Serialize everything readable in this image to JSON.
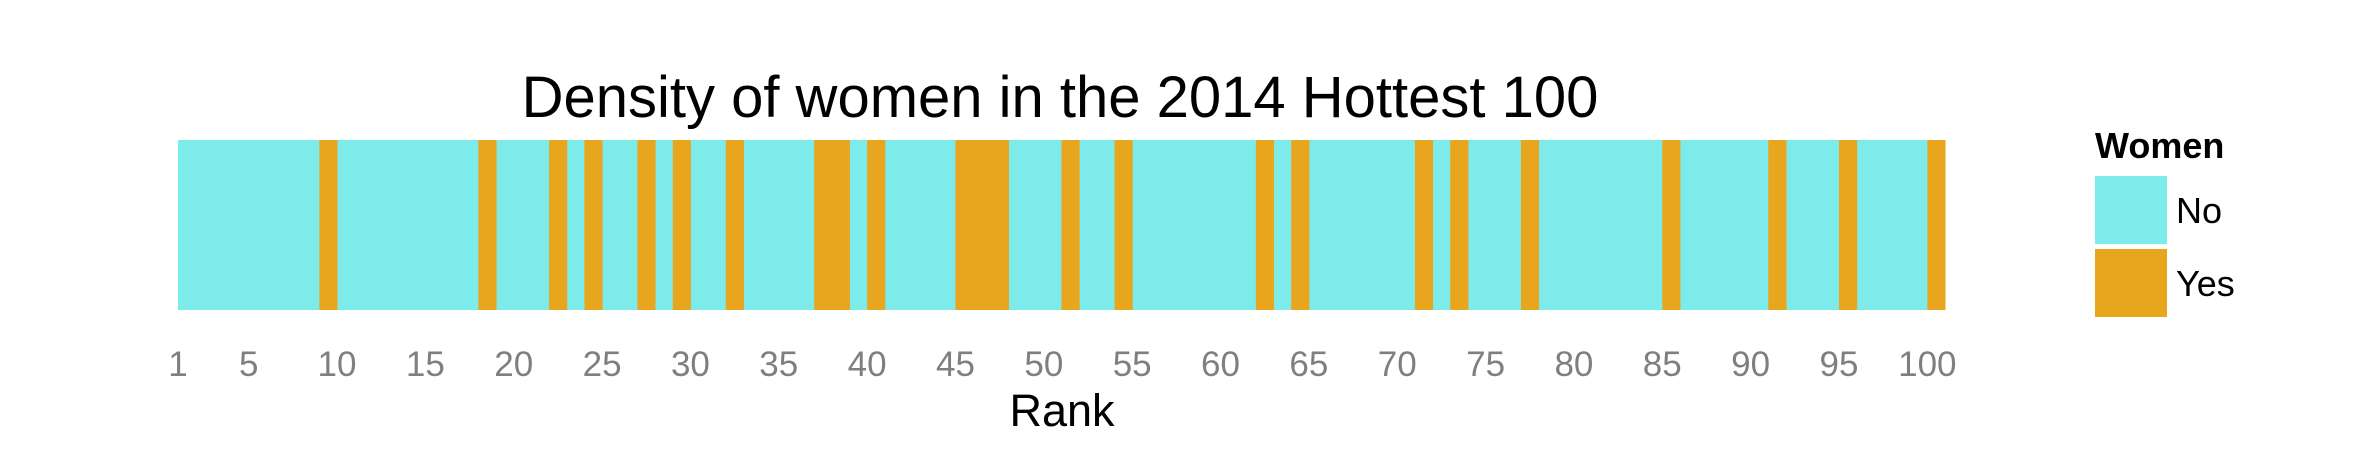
{
  "chart_data": {
    "type": "heatmap",
    "title": "Density of women in the 2014 Hottest 100",
    "xlabel": "Rank",
    "ylabel": "",
    "xlim": [
      1,
      101
    ],
    "x_ticks": [
      1,
      5,
      10,
      15,
      20,
      25,
      30,
      35,
      40,
      45,
      50,
      55,
      60,
      65,
      70,
      75,
      80,
      85,
      90,
      95,
      100
    ],
    "women_ranks": [
      10,
      19,
      23,
      25,
      28,
      30,
      33,
      38,
      39,
      41,
      46,
      47,
      48,
      52,
      55,
      63,
      65,
      72,
      74,
      78,
      86,
      92,
      96,
      101
    ],
    "legend": {
      "title": "Women",
      "entries": [
        {
          "label": "No",
          "color": "#7EEBEB"
        },
        {
          "label": "Yes",
          "color": "#E8A61E"
        }
      ]
    },
    "grid": false,
    "legend_position": "right"
  }
}
